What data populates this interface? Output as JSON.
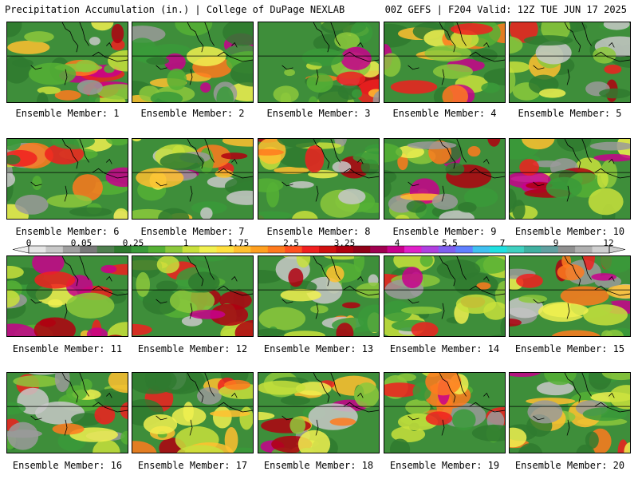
{
  "header": {
    "left_title": "Precipitation Accumulation (in.) | College of DuPage NEXLAB",
    "right_title": "00Z GEFS | F204 Valid: 12Z TUE JUN 17 2025"
  },
  "panels": [
    {
      "label": "Ensemble Member: 1",
      "seed": 11
    },
    {
      "label": "Ensemble Member: 2",
      "seed": 23
    },
    {
      "label": "Ensemble Member: 3",
      "seed": 37
    },
    {
      "label": "Ensemble Member: 4",
      "seed": 41
    },
    {
      "label": "Ensemble Member: 5",
      "seed": 53
    },
    {
      "label": "Ensemble Member: 6",
      "seed": 67
    },
    {
      "label": "Ensemble Member: 7",
      "seed": 71
    },
    {
      "label": "Ensemble Member: 8",
      "seed": 83
    },
    {
      "label": "Ensemble Member: 9",
      "seed": 97
    },
    {
      "label": "Ensemble Member: 10",
      "seed": 101
    },
    {
      "label": "Ensemble Member: 11",
      "seed": 113
    },
    {
      "label": "Ensemble Member: 12",
      "seed": 127
    },
    {
      "label": "Ensemble Member: 13",
      "seed": 131
    },
    {
      "label": "Ensemble Member: 14",
      "seed": 149
    },
    {
      "label": "Ensemble Member: 15",
      "seed": 157
    },
    {
      "label": "Ensemble Member: 16",
      "seed": 163
    },
    {
      "label": "Ensemble Member: 17",
      "seed": 173
    },
    {
      "label": "Ensemble Member: 18",
      "seed": 181
    },
    {
      "label": "Ensemble Member: 19",
      "seed": 191
    },
    {
      "label": "Ensemble Member: 20",
      "seed": 199
    }
  ],
  "colorbar": {
    "labels": [
      "0",
      "0.05",
      "0.25",
      "1",
      "1.75",
      "2.5",
      "3.25",
      "4",
      "5.5",
      "7",
      "9",
      "12"
    ],
    "colors": [
      "#e6e6e6",
      "#c8c8c8",
      "#a0a0a0",
      "#7a7a7a",
      "#4f7f4f",
      "#2f7a2f",
      "#3a9a3a",
      "#55b035",
      "#8cc83c",
      "#c8e03c",
      "#f0f050",
      "#ffe040",
      "#ffc030",
      "#ffa020",
      "#ff7a1e",
      "#ff5020",
      "#f02020",
      "#d01010",
      "#b00010",
      "#900018",
      "#a00050",
      "#c8008c",
      "#e020c8",
      "#b040e0",
      "#8060f0",
      "#6080ff",
      "#40c0f0",
      "#20e0e0",
      "#40d0c0",
      "#40b0a0",
      "#60a0a0",
      "#909090",
      "#b0b0b0",
      "#d0d0d0"
    ]
  }
}
